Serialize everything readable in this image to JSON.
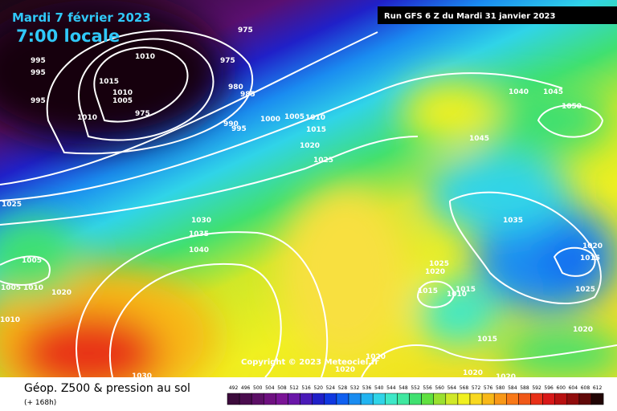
{
  "header": {
    "date": "Mardi 7 février 2023",
    "time": "7:00 locale",
    "run": "Run GFS 6 Z du Mardi 31 janvier 2023",
    "copyright": "Copyright © 2023 Meteociel.fr"
  },
  "legend": {
    "title": "Géop. Z500 & pression au sol",
    "subtitle": "(+ 168h)",
    "scale": [
      {
        "label": 492,
        "color": "#3c0b3c"
      },
      {
        "label": 496,
        "color": "#4a0c4e"
      },
      {
        "label": 500,
        "color": "#5c0f66"
      },
      {
        "label": 504,
        "color": "#6e1080"
      },
      {
        "label": 508,
        "color": "#7a1496"
      },
      {
        "label": 512,
        "color": "#6a16a8"
      },
      {
        "label": 516,
        "color": "#4a1ab8"
      },
      {
        "label": 520,
        "color": "#2020c8"
      },
      {
        "label": 524,
        "color": "#1038e0"
      },
      {
        "label": 528,
        "color": "#1060f0"
      },
      {
        "label": 532,
        "color": "#1a8cf0"
      },
      {
        "label": 536,
        "color": "#22b4f0"
      },
      {
        "label": 540,
        "color": "#30d4e8"
      },
      {
        "label": 544,
        "color": "#3ee8c8"
      },
      {
        "label": 548,
        "color": "#40e8a0"
      },
      {
        "label": 552,
        "color": "#40e070"
      },
      {
        "label": 556,
        "color": "#60e040"
      },
      {
        "label": 560,
        "color": "#9ae030"
      },
      {
        "label": 564,
        "color": "#d0e828"
      },
      {
        "label": 568,
        "color": "#f0f020"
      },
      {
        "label": 572,
        "color": "#f8d820"
      },
      {
        "label": 576,
        "color": "#f8b818"
      },
      {
        "label": 580,
        "color": "#f89818"
      },
      {
        "label": 584,
        "color": "#f87818"
      },
      {
        "label": 588,
        "color": "#f05818"
      },
      {
        "label": 592,
        "color": "#e83018"
      },
      {
        "label": 596,
        "color": "#d81818"
      },
      {
        "label": 600,
        "color": "#b81010"
      },
      {
        "label": 604,
        "color": "#900c0c"
      },
      {
        "label": 608,
        "color": "#600808"
      },
      {
        "label": 612,
        "color": "#200404"
      }
    ]
  },
  "isobars": [
    975,
    1010,
    995,
    995,
    975,
    1015,
    1010,
    1005,
    980,
    985,
    995,
    975,
    1010,
    990,
    995,
    1000,
    1005,
    1010,
    1015,
    1020,
    1025,
    1040,
    1045,
    1050,
    1045,
    1025,
    1030,
    1035,
    1040,
    1005,
    1035,
    1020,
    1015,
    1025,
    1020,
    1015,
    1015,
    1010,
    1025,
    1005,
    1010,
    1020,
    1010,
    1020,
    1015,
    1020,
    1020,
    1020,
    1020,
    1030
  ]
}
